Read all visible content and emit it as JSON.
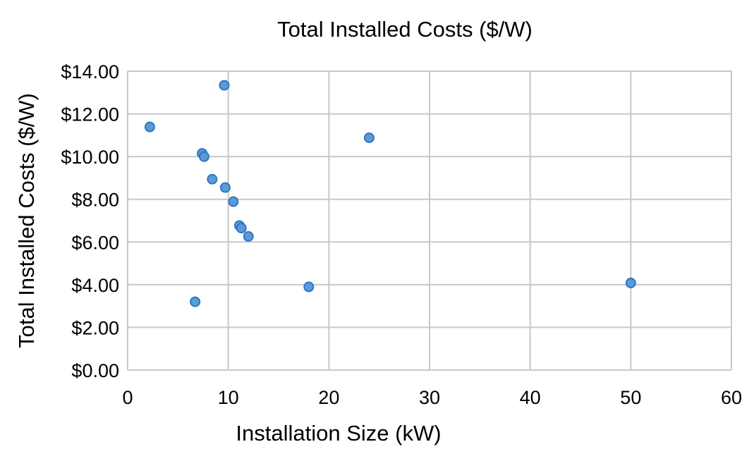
{
  "chart_data": {
    "type": "scatter",
    "title": "Total Installed Costs ($/W)",
    "xlabel": "Installation Size (kW)",
    "ylabel": "Total Installed Costs ($/W)",
    "xlim": [
      0,
      60
    ],
    "ylim": [
      0,
      14
    ],
    "x_ticks": [
      0,
      10,
      20,
      30,
      40,
      50,
      60
    ],
    "x_tick_labels": [
      "0",
      "10",
      "20",
      "30",
      "40",
      "50",
      "60"
    ],
    "y_ticks": [
      0,
      2,
      4,
      6,
      8,
      10,
      12,
      14
    ],
    "y_tick_labels": [
      "$0.00",
      "$2.00",
      "$4.00",
      "$6.00",
      "$8.00",
      "$10.00",
      "$12.00",
      "$14.00"
    ],
    "grid": true,
    "legend": "none",
    "marker_color": "#5B9BD5",
    "marker_edge_color": "#2E75C6",
    "points": [
      {
        "x": 2.2,
        "y": 11.39
      },
      {
        "x": 9.6,
        "y": 13.34
      },
      {
        "x": 7.4,
        "y": 10.15
      },
      {
        "x": 7.6,
        "y": 10.0
      },
      {
        "x": 8.4,
        "y": 8.94
      },
      {
        "x": 9.7,
        "y": 8.55
      },
      {
        "x": 10.5,
        "y": 7.89
      },
      {
        "x": 11.1,
        "y": 6.77
      },
      {
        "x": 11.3,
        "y": 6.65
      },
      {
        "x": 12.0,
        "y": 6.26
      },
      {
        "x": 6.7,
        "y": 3.2
      },
      {
        "x": 18.0,
        "y": 3.9
      },
      {
        "x": 24.0,
        "y": 10.88
      },
      {
        "x": 50.0,
        "y": 4.08
      }
    ]
  }
}
